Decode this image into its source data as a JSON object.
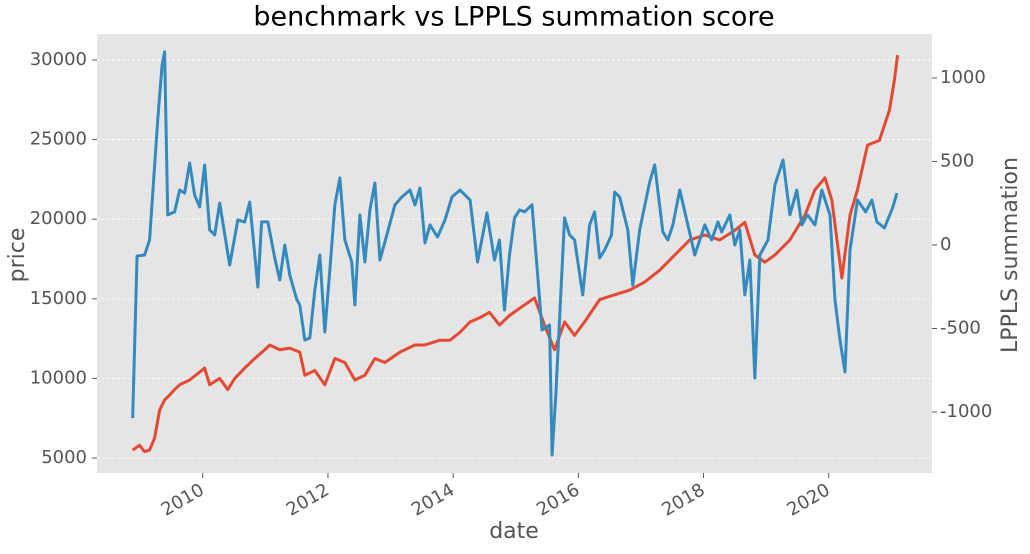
{
  "chart_data": {
    "type": "line",
    "title": "benchmark vs LPPLS summation score",
    "xlabel": "date",
    "ylabel": "price",
    "y2label": "LPPLS summation",
    "xlim": [
      2008.31,
      2021.65
    ],
    "xticks": [
      2010,
      2012,
      2014,
      2016,
      2018,
      2020
    ],
    "ylim": [
      4060,
      31630
    ],
    "yticks": [
      5000,
      10000,
      15000,
      20000,
      25000,
      30000
    ],
    "y2lim": [
      -1365,
      1263
    ],
    "y2ticks": [
      -1000,
      -500,
      0,
      500,
      1000
    ],
    "grid": true,
    "series": [
      {
        "color": "#e24a33",
        "x": [
          2008.88,
          2008.99,
          2009.07,
          2009.15,
          2009.23,
          2009.31,
          2009.39,
          2009.47,
          2009.55,
          2009.63,
          2009.79,
          2009.95,
          2010.03,
          2010.11,
          2010.27,
          2010.4,
          2010.51,
          2010.67,
          2010.83,
          2010.99,
          2011.07,
          2011.23,
          2011.39,
          2011.55,
          2011.63,
          2011.79,
          2011.95,
          2012.11,
          2012.27,
          2012.43,
          2012.59,
          2012.75,
          2012.91,
          2013.15,
          2013.39,
          2013.55,
          2013.79,
          2013.95,
          2014.11,
          2014.27,
          2014.42,
          2014.58,
          2014.74,
          2014.9,
          2015.06,
          2015.3,
          2015.46,
          2015.62,
          2015.78,
          2015.94,
          2016.1,
          2016.34,
          2016.58,
          2016.82,
          2017.06,
          2017.3,
          2017.54,
          2017.78,
          2018.02,
          2018.26,
          2018.5,
          2018.66,
          2018.82,
          2018.98,
          2019.14,
          2019.38,
          2019.62,
          2019.78,
          2019.94,
          2020.05,
          2020.21,
          2020.34,
          2020.46,
          2020.62,
          2020.81,
          2020.97,
          2021.05,
          2021.1
        ],
        "values": [
          5500,
          5800,
          5400,
          5500,
          6250,
          8000,
          8650,
          8950,
          9300,
          9600,
          9900,
          10400,
          10650,
          9600,
          10000,
          9300,
          10000,
          10650,
          11250,
          11800,
          12100,
          11800,
          11900,
          11650,
          10200,
          10500,
          9600,
          11250,
          11000,
          9900,
          10200,
          11250,
          11000,
          11650,
          12100,
          12100,
          12400,
          12400,
          12900,
          13550,
          13800,
          14150,
          13350,
          13950,
          14400,
          15050,
          13350,
          11800,
          13550,
          12700,
          13550,
          14950,
          15250,
          15550,
          16050,
          16800,
          17750,
          18700,
          19000,
          18700,
          19300,
          19800,
          17750,
          17300,
          17750,
          18700,
          20250,
          21850,
          22600,
          21200,
          16300,
          20250,
          21850,
          24650,
          24950,
          26850,
          28750,
          30300
        ]
      },
      {
        "color": "#348abd",
        "axis": "y2",
        "x": [
          2008.88,
          2008.95,
          2009.07,
          2009.15,
          2009.28,
          2009.35,
          2009.39,
          2009.44,
          2009.55,
          2009.63,
          2009.71,
          2009.79,
          2009.87,
          2009.95,
          2010.03,
          2010.11,
          2010.19,
          2010.27,
          2010.43,
          2010.56,
          2010.67,
          2010.75,
          2010.88,
          2010.94,
          2011.04,
          2011.15,
          2011.23,
          2011.31,
          2011.39,
          2011.5,
          2011.55,
          2011.63,
          2011.71,
          2011.79,
          2011.87,
          2011.95,
          2012.03,
          2012.11,
          2012.19,
          2012.27,
          2012.38,
          2012.43,
          2012.51,
          2012.59,
          2012.67,
          2012.75,
          2012.83,
          2012.94,
          2013.07,
          2013.18,
          2013.31,
          2013.39,
          2013.47,
          2013.55,
          2013.63,
          2013.75,
          2013.87,
          2013.98,
          2014.11,
          2014.27,
          2014.39,
          2014.54,
          2014.66,
          2014.74,
          2014.82,
          2014.9,
          2014.98,
          2015.06,
          2015.14,
          2015.26,
          2015.42,
          2015.54,
          2015.58,
          2015.64,
          2015.78,
          2015.86,
          2015.94,
          2016.07,
          2016.18,
          2016.26,
          2016.34,
          2016.42,
          2016.53,
          2016.58,
          2016.66,
          2016.79,
          2016.87,
          2016.98,
          2017.14,
          2017.22,
          2017.35,
          2017.43,
          2017.51,
          2017.62,
          2017.75,
          2017.86,
          2018.02,
          2018.13,
          2018.23,
          2018.29,
          2018.42,
          2018.5,
          2018.58,
          2018.66,
          2018.74,
          2018.82,
          2018.9,
          2019.03,
          2019.14,
          2019.27,
          2019.38,
          2019.49,
          2019.57,
          2019.66,
          2019.78,
          2019.89,
          2020.02,
          2020.1,
          2020.18,
          2020.26,
          2020.34,
          2020.46,
          2020.59,
          2020.69,
          2020.77,
          2020.89,
          2021.02,
          2021.09
        ],
        "values": [
          -1036,
          -66,
          -60,
          30,
          749,
          1078,
          1156,
          180,
          198,
          329,
          311,
          491,
          299,
          228,
          479,
          90,
          60,
          251,
          -120,
          150,
          138,
          257,
          -252,
          138,
          138,
          -78,
          -210,
          0,
          -180,
          -325,
          -359,
          -569,
          -557,
          -270,
          -60,
          -521,
          -150,
          240,
          401,
          30,
          -102,
          -359,
          180,
          -102,
          210,
          371,
          -90,
          60,
          240,
          287,
          329,
          240,
          341,
          12,
          120,
          48,
          150,
          287,
          329,
          269,
          -102,
          192,
          -90,
          30,
          -389,
          -60,
          162,
          210,
          198,
          240,
          -509,
          -479,
          -1258,
          -898,
          162,
          60,
          30,
          -299,
          120,
          198,
          -78,
          -30,
          60,
          317,
          287,
          90,
          -240,
          90,
          377,
          479,
          78,
          30,
          120,
          329,
          120,
          -60,
          120,
          30,
          138,
          78,
          180,
          0,
          90,
          -299,
          -90,
          -796,
          -60,
          30,
          359,
          509,
          180,
          329,
          120,
          180,
          120,
          329,
          180,
          -329,
          -569,
          -760,
          -30,
          269,
          198,
          269,
          138,
          102,
          222,
          311
        ]
      }
    ]
  }
}
